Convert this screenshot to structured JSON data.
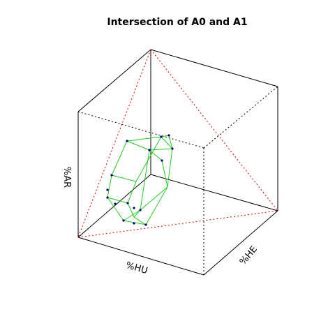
{
  "title": "Intersection of A0 and A1",
  "axes": {
    "x_label": "%HU",
    "y_label": "%HE",
    "z_label": "%AR"
  },
  "colors": {
    "cube_edges": "#000000",
    "simplex_edges": "#cc0000",
    "polytope_edges": "#22cc22",
    "polytope_vertices": "#000066",
    "background": "#ffffff"
  }
}
